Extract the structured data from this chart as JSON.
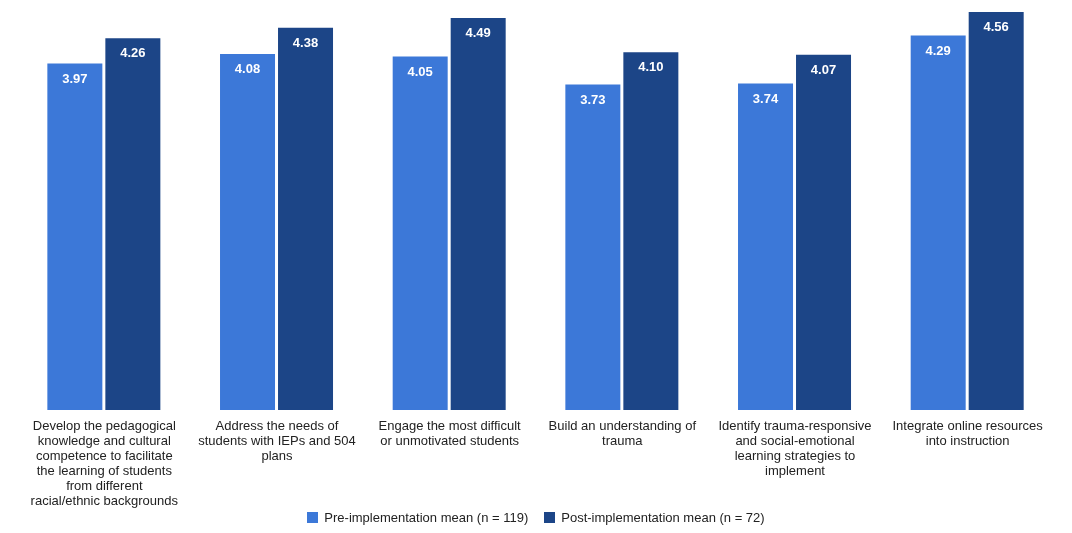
{
  "chart_data": {
    "type": "bar",
    "categories": [
      "Develop the pedagogical knowledge and cultural competence to facilitate the learning of students from different racial/ethnic backgrounds",
      "Address the needs of students with IEPs and 504 plans",
      "Engage the most difficult or unmotivated students",
      "Build an understanding of trauma",
      "Identify trauma-responsive and social-emotional learning strategies to implement",
      "Integrate online resources into instruction"
    ],
    "series": [
      {
        "name": "Pre-implementation mean (n = 119)",
        "color": "#3c78d8",
        "values": [
          3.97,
          4.08,
          4.05,
          3.73,
          3.74,
          4.29
        ],
        "value_labels": [
          "3.97",
          "4.08",
          "4.05",
          "3.73",
          "3.74",
          "4.29"
        ]
      },
      {
        "name": "Post-implementation mean (n = 72)",
        "color": "#1c4587",
        "values": [
          4.26,
          4.38,
          4.49,
          4.1,
          4.07,
          4.56
        ],
        "value_labels": [
          "4.26",
          "4.38",
          "4.49",
          "4.10",
          "4.07",
          "4.56"
        ]
      }
    ],
    "legend": "bottom"
  }
}
